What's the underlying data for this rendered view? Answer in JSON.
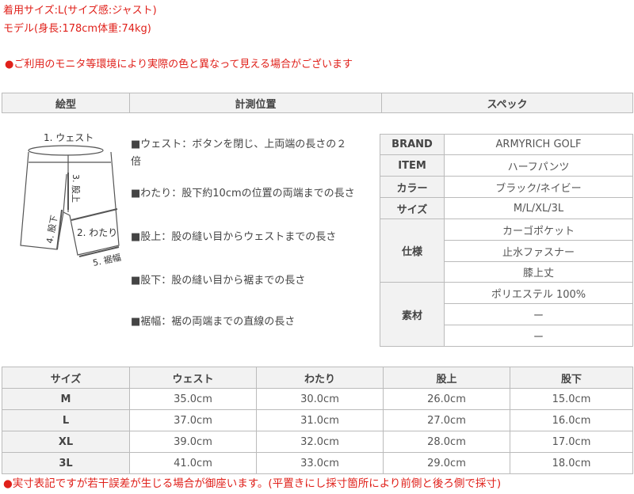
{
  "model_info": {
    "worn_size": "着用サイズ:L(サイズ感:ジャスト)",
    "model": "モデル(身長:178cm体重:74kg)"
  },
  "color_note": "●ご利用のモニタ等環境により実際の色と異なって見える場合がございます",
  "header": {
    "col1": "絵型",
    "col2": "計測位置",
    "col3": "スペック"
  },
  "diagram_labels": {
    "waist": "1. ウェスト",
    "thigh": "2. わたり",
    "rise": "3. 股上",
    "inseam": "4. 股下",
    "hem": "5. 裾幅"
  },
  "measurements": [
    "■ウェスト：ボタンを閉じ、上両端の長さの２",
    "倍",
    "■わたり：股下約10cmの位置の両端までの長さ",
    "■股上：股の縫い目からウェストまでの長さ",
    "■股下：股の縫い目から裾までの長さ",
    "■裾幅：裾の両端までの直線の長さ"
  ],
  "spec": {
    "brand_label": "BRAND",
    "brand": "ARMYRICH GOLF",
    "item_label": "ITEM",
    "item": "ハーフパンツ",
    "color_label": "カラー",
    "color": "ブラック/ネイビー",
    "size_label": "サイズ",
    "size": "M/L/XL/3L",
    "features_label": "仕様",
    "features": [
      "カーゴポケット",
      "止水ファスナー",
      "膝上丈"
    ],
    "material_label": "素材",
    "material": [
      "ポリエステル 100%",
      "ー",
      "ー"
    ]
  },
  "size_table": {
    "headers": [
      "サイズ",
      "ウェスト",
      "わたり",
      "股上",
      "股下"
    ],
    "rows": [
      [
        "M",
        "35.0cm",
        "30.0cm",
        "26.0cm",
        "15.0cm"
      ],
      [
        "L",
        "37.0cm",
        "31.0cm",
        "27.0cm",
        "16.0cm"
      ],
      [
        "XL",
        "39.0cm",
        "32.0cm",
        "28.0cm",
        "17.0cm"
      ],
      [
        "3L",
        "41.0cm",
        "33.0cm",
        "29.0cm",
        "18.0cm"
      ]
    ]
  },
  "footer_note": "●実寸表記ですが若干誤差が生じる場合が御座います。(平置きにし採寸箇所により前側と後ろ側で採寸)",
  "colors": {
    "accent_red": "#e0201a",
    "header_bg": "#f2f2f2",
    "border": "#bbbbbb"
  }
}
